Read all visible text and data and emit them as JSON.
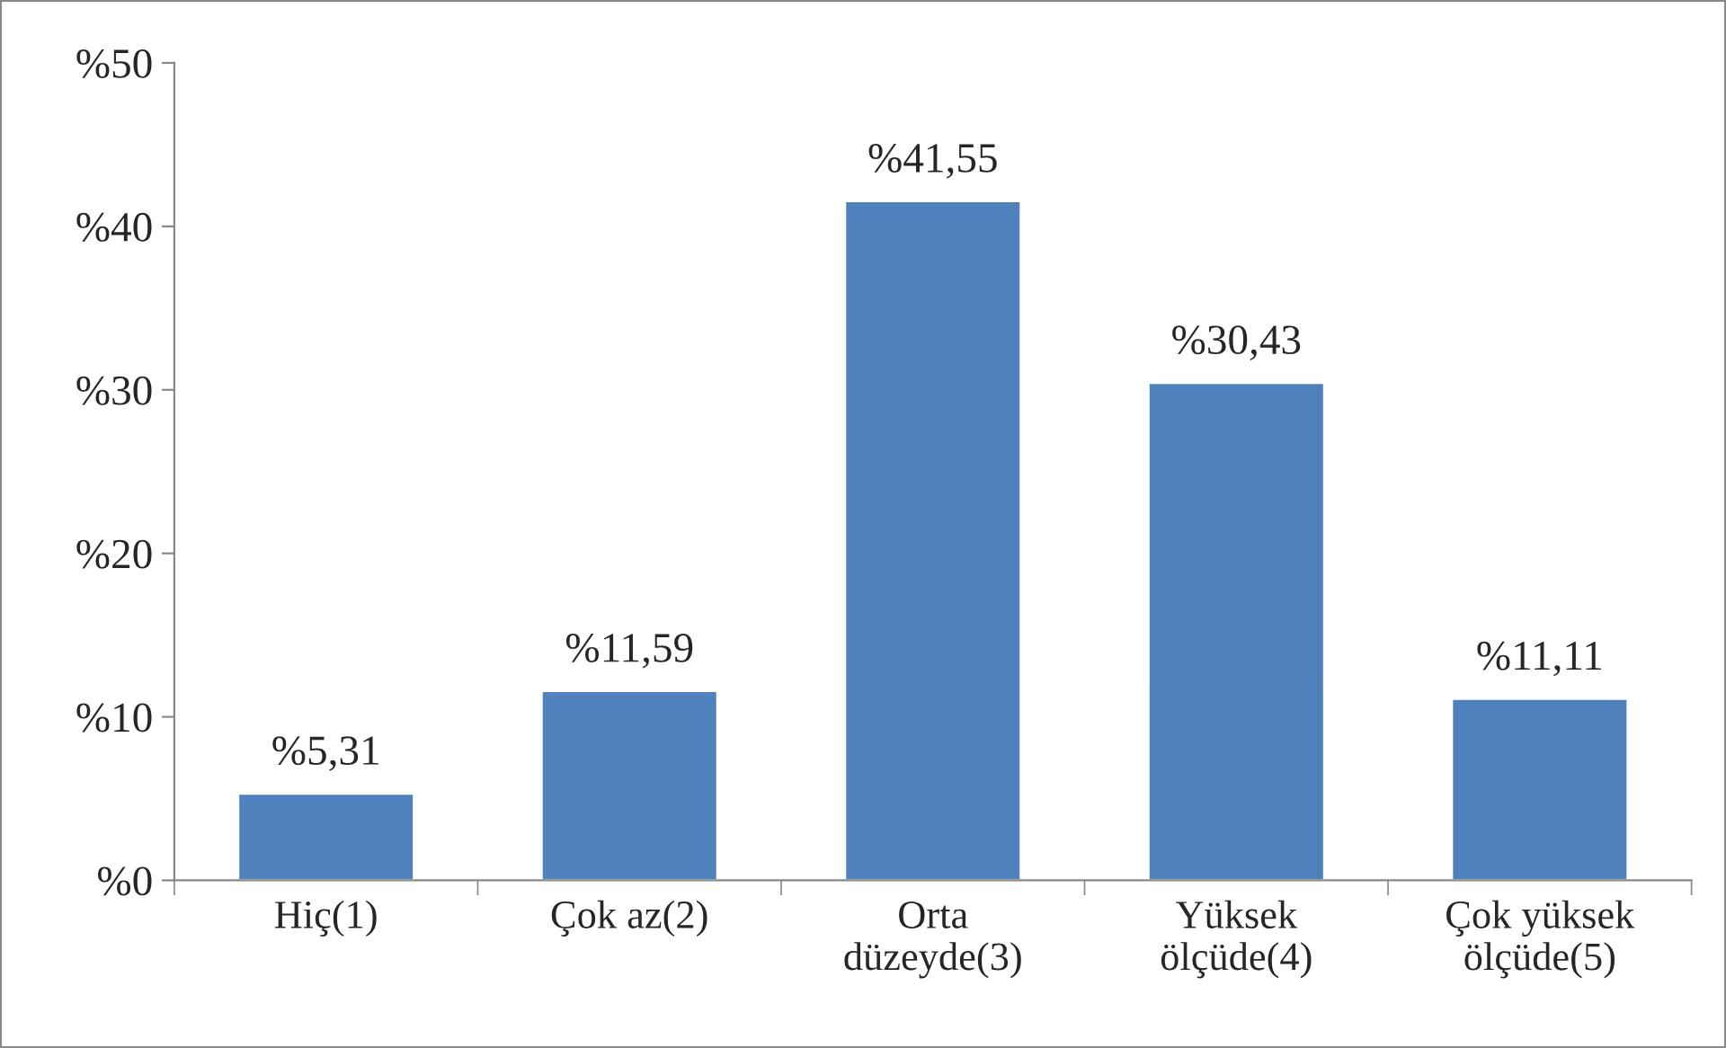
{
  "chart_data": {
    "type": "bar",
    "categories": [
      "Hiç(1)",
      "Çok az(2)",
      "Orta\ndüzeyde(3)",
      "Yüksek\nölçüde(4)",
      "Çok yüksek\nölçüde(5)"
    ],
    "values": [
      5.31,
      11.59,
      41.55,
      30.43,
      11.11
    ],
    "value_labels": [
      "%5,31",
      "%11,59",
      "%41,55",
      "%30,43",
      "%11,11"
    ],
    "color": "#4f81bd",
    "ylim": [
      0,
      50
    ],
    "yticks": [
      {
        "value": 0,
        "label": "%0"
      },
      {
        "value": 10,
        "label": "%10"
      },
      {
        "value": 20,
        "label": "%20"
      },
      {
        "value": 30,
        "label": "%30"
      },
      {
        "value": 40,
        "label": "%40"
      },
      {
        "value": 50,
        "label": "%50"
      }
    ],
    "grid": false,
    "legend": false
  }
}
